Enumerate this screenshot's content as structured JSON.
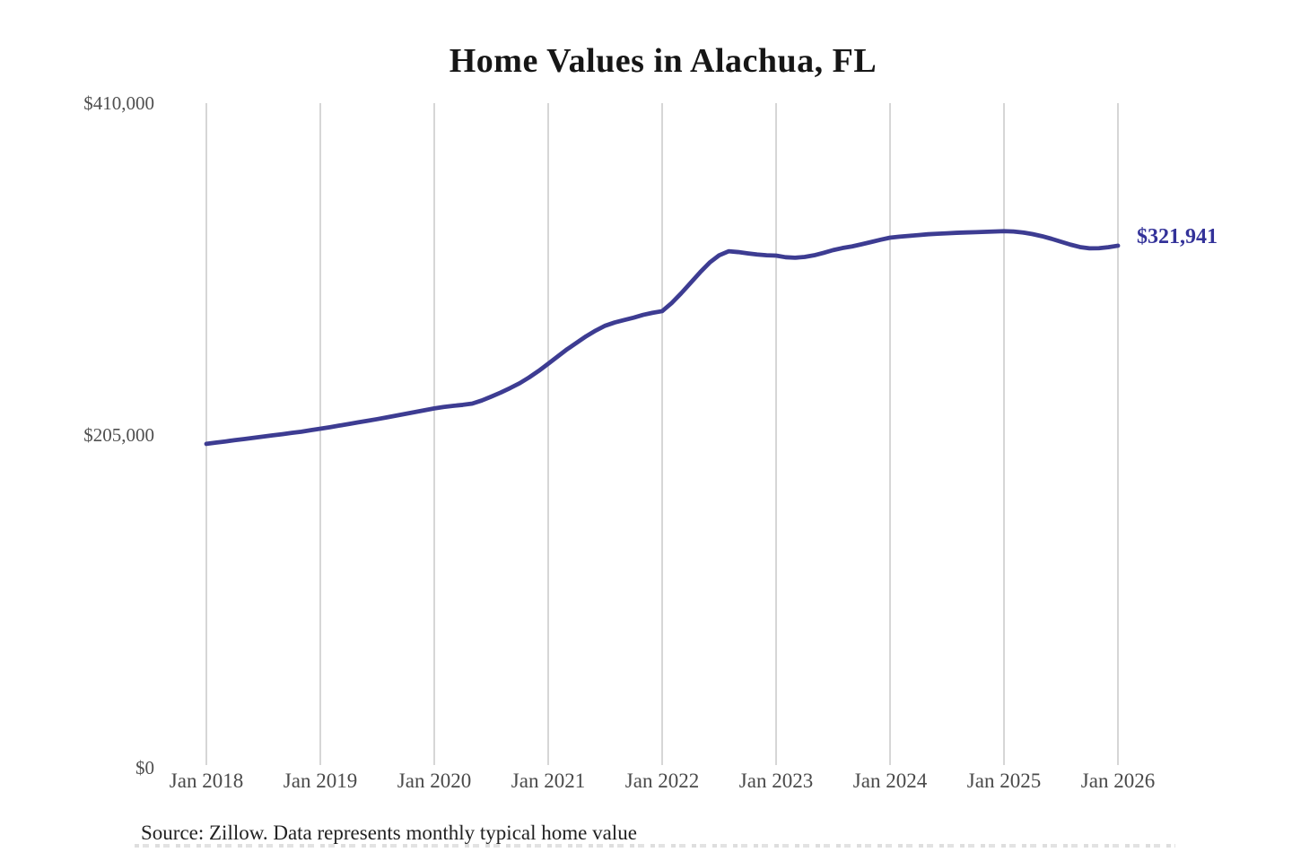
{
  "title": "Home Values in Alachua, FL",
  "end_value_label": "$321,941",
  "source_note": "Source: Zillow. Data represents monthly typical home value",
  "colors": {
    "line": "#3d3c92",
    "end_label": "#333299",
    "gridline": "#cccccc",
    "axis_text": "#4f4f4f",
    "title_text": "#161616",
    "background": "#ffffff"
  },
  "chart_data": {
    "type": "line",
    "title": "Home Values in Alachua, FL",
    "x_start": "2018-01",
    "x_end": "2026-01",
    "frequency": "monthly",
    "x_tick_labels": [
      "Jan 2018",
      "Jan 2019",
      "Jan 2020",
      "Jan 2021",
      "Jan 2022",
      "Jan 2023",
      "Jan 2024",
      "Jan 2025",
      "Jan 2026"
    ],
    "y_ticks": [
      {
        "value": 0,
        "label": "$0"
      },
      {
        "value": 205000,
        "label": "$205,000"
      },
      {
        "value": 410000,
        "label": "$410,000"
      }
    ],
    "ylim": [
      0,
      410000
    ],
    "grid": "vertical",
    "legend": "none",
    "end_label": "$321,941",
    "final_value": 321941,
    "series": [
      {
        "name": "Typical home value",
        "values": [
          199500,
          200300,
          201000,
          201800,
          202500,
          203300,
          204000,
          204800,
          205500,
          206300,
          207000,
          208000,
          208900,
          209800,
          210800,
          211800,
          212800,
          213800,
          214800,
          215900,
          217000,
          218100,
          219200,
          220300,
          221400,
          222300,
          223000,
          223600,
          224400,
          226300,
          228700,
          231200,
          234000,
          237000,
          240600,
          244600,
          249000,
          253500,
          258000,
          262000,
          266000,
          269500,
          272500,
          274500,
          276000,
          277500,
          279200,
          280500,
          281500,
          286500,
          292500,
          299000,
          305500,
          311500,
          316000,
          318500,
          318000,
          317200,
          316500,
          316000,
          315800,
          314800,
          314500,
          315000,
          316000,
          317500,
          319200,
          320500,
          321500,
          322800,
          324200,
          325600,
          326900,
          327500,
          328000,
          328500,
          329000,
          329300,
          329600,
          329900,
          330100,
          330300,
          330500,
          330700,
          330900,
          330700,
          330100,
          329100,
          327800,
          326200,
          324400,
          322600,
          321100,
          320300,
          320400,
          321000,
          321941
        ]
      }
    ]
  }
}
